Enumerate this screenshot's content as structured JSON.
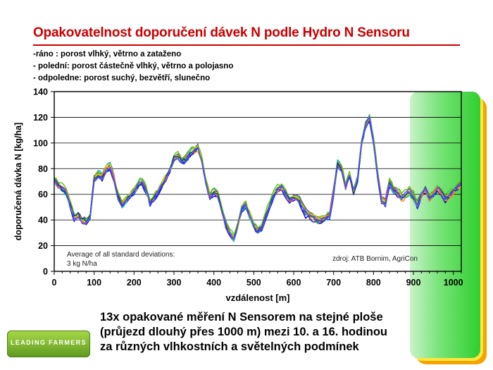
{
  "slide": {
    "title": "Opakovatelnost doporučení dávek N podle Hydro N Sensoru",
    "conditions": [
      "-ráno : porost vlhký, větrno a zataženo",
      "- polední: porost částečně vlhký, větrno a polojasno",
      "- odpoledne: porost suchý, bezvětří, slunečno"
    ],
    "note_lines": [
      "13x opakované měření N Sensorem na stejné ploše",
      "(průjezd dlouhý přes 1000 m) mezi 10. a 16. hodinou",
      "za různých vlhkostních a světelných podmínek"
    ],
    "logo_text": "LEADING FARMERS",
    "colors": {
      "title": "#cc0000",
      "panel_green": "#2fcf2f",
      "panel_yellow": "#ffe640",
      "panel_orange": "#f3a400"
    }
  },
  "chart_data": {
    "type": "line",
    "xlabel": "vzdálenost [m]",
    "ylabel": "doporučená dávka N [kg/ha]",
    "xlim": [
      0,
      1020
    ],
    "ylim": [
      0,
      140
    ],
    "xticks": [
      0,
      100,
      200,
      300,
      400,
      500,
      600,
      700,
      800,
      900,
      1000
    ],
    "yticks": [
      0,
      20,
      40,
      60,
      80,
      100,
      120,
      140
    ],
    "grid": "horizontal",
    "annotations": {
      "stats_lines": [
        "Average of all standard deviations:",
        "3 kg N/ha"
      ],
      "source": "zdroj: ATB Bornim, AgriCon"
    },
    "series_count": 13,
    "series_colors": [
      "#0000cc",
      "#00a0e0",
      "#00b050",
      "#ffd000",
      "#ff8c00",
      "#8030a0",
      "#1a1aff",
      "#20c0c0",
      "#60c000",
      "#e0e000",
      "#ff6040",
      "#004080",
      "#5050ff"
    ],
    "mean_profile": {
      "x": [
        0,
        10,
        20,
        30,
        40,
        50,
        60,
        70,
        80,
        90,
        100,
        110,
        120,
        130,
        140,
        150,
        160,
        170,
        180,
        190,
        200,
        210,
        220,
        230,
        240,
        250,
        260,
        270,
        280,
        290,
        300,
        310,
        320,
        330,
        340,
        350,
        360,
        370,
        380,
        390,
        400,
        410,
        420,
        430,
        440,
        450,
        460,
        470,
        480,
        490,
        500,
        510,
        520,
        530,
        540,
        550,
        560,
        570,
        580,
        590,
        600,
        610,
        620,
        630,
        640,
        650,
        660,
        670,
        680,
        690,
        700,
        710,
        720,
        730,
        740,
        750,
        760,
        770,
        780,
        790,
        800,
        810,
        820,
        830,
        840,
        850,
        860,
        870,
        880,
        890,
        900,
        910,
        920,
        930,
        940,
        950,
        960,
        970,
        980,
        990,
        1000,
        1010,
        1020
      ],
      "y": [
        72,
        67,
        65,
        62,
        52,
        42,
        44,
        40,
        39,
        43,
        72,
        76,
        74,
        80,
        82,
        72,
        58,
        52,
        56,
        60,
        62,
        68,
        70,
        64,
        54,
        57,
        62,
        68,
        74,
        80,
        88,
        90,
        86,
        88,
        92,
        94,
        97,
        86,
        70,
        58,
        62,
        60,
        48,
        36,
        30,
        26,
        36,
        50,
        52,
        44,
        36,
        32,
        34,
        44,
        52,
        60,
        64,
        66,
        60,
        56,
        58,
        58,
        52,
        46,
        44,
        42,
        40,
        40,
        42,
        44,
        62,
        84,
        80,
        66,
        76,
        62,
        72,
        100,
        114,
        120,
        102,
        76,
        56,
        54,
        70,
        64,
        62,
        58,
        60,
        62,
        58,
        52,
        60,
        64,
        58,
        60,
        66,
        62,
        58,
        60,
        62,
        66,
        68
      ]
    }
  }
}
